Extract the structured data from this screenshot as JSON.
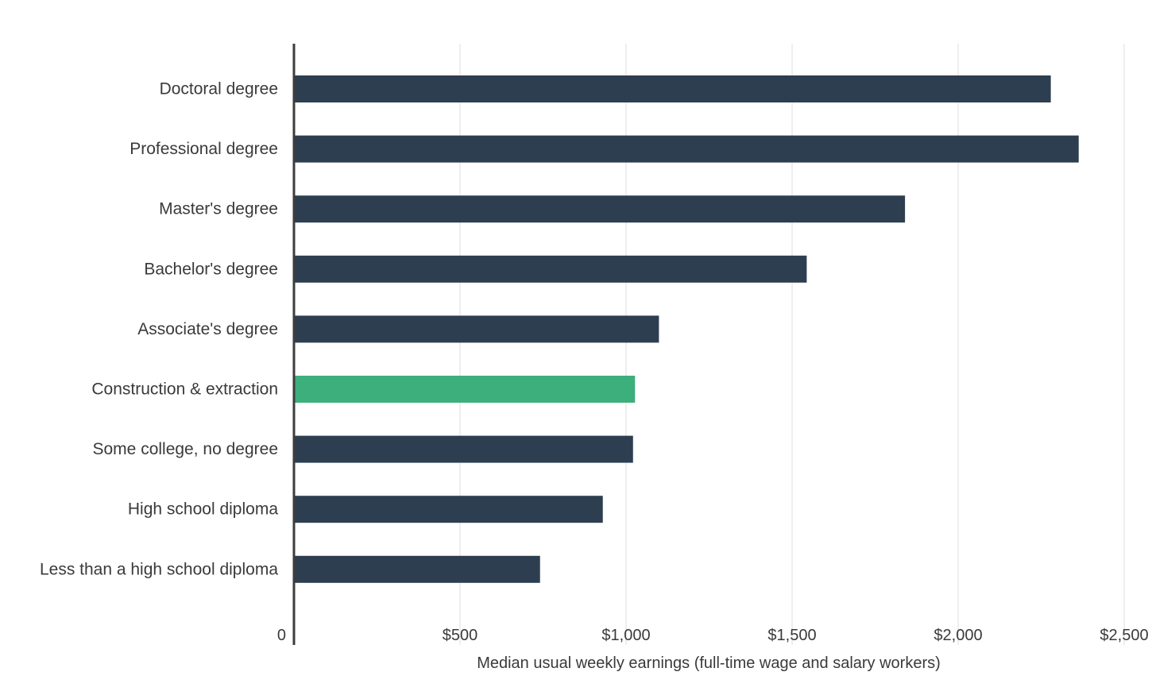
{
  "chart_data": {
    "type": "bar",
    "orientation": "horizontal",
    "categories": [
      "Doctoral degree",
      "Professional degree",
      "Master's degree",
      "Bachelor's degree",
      "Associate's degree",
      "Construction & extraction",
      "Some college, no degree",
      "High school diploma",
      "Less than a high school diploma"
    ],
    "values": [
      2279,
      2363,
      1840,
      1544,
      1099,
      1027,
      1021,
      930,
      741
    ],
    "highlight_category": "Construction & extraction",
    "colors": {
      "bar": "#2d3e50",
      "highlight": "#3daf7c"
    },
    "xlim": [
      0,
      2500
    ],
    "x_ticks": [
      0,
      500,
      1000,
      1500,
      2000,
      2500
    ],
    "x_tick_labels": [
      "0",
      "$500",
      "$1,000",
      "$1,500",
      "$2,000",
      "$2,500"
    ],
    "xlabel": "Median usual weekly earnings (full-time wage and salary workers)",
    "ylabel": "",
    "title": "",
    "grid": true,
    "legend": "none"
  }
}
